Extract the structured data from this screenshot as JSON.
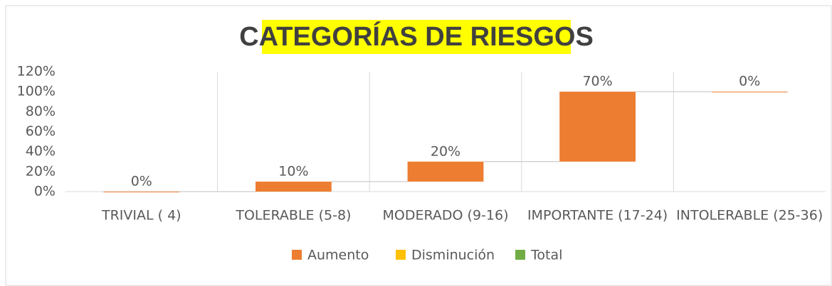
{
  "chart_data": {
    "type": "waterfall",
    "title": "CATEGORÍAS DE RIESGOS",
    "categories": [
      "TRIVIAL ( 4)",
      "TOLERABLE (5-8)",
      "MODERADO (9-16)",
      "IMPORTANTE (17-24)",
      "INTOLERABLE (25-36)"
    ],
    "values": [
      0,
      10,
      20,
      70,
      0
    ],
    "value_labels": [
      "0%",
      "10%",
      "20%",
      "70%",
      "0%"
    ],
    "color": "#ed7d31",
    "legend": [
      {
        "name": "Aumento",
        "color": "#ed7d31"
      },
      {
        "name": "Disminución",
        "color": "#ffc000"
      },
      {
        "name": "Total",
        "color": "#70ad47"
      }
    ],
    "ylim": [
      0,
      120
    ],
    "yticks": [
      {
        "value": 0,
        "label": "0%"
      },
      {
        "value": 20,
        "label": "20%"
      },
      {
        "value": 40,
        "label": "40%"
      },
      {
        "value": 60,
        "label": "60%"
      },
      {
        "value": 80,
        "label": "80%"
      },
      {
        "value": 100,
        "label": "100%"
      },
      {
        "value": 120,
        "label": "120%"
      }
    ],
    "grid": true
  }
}
